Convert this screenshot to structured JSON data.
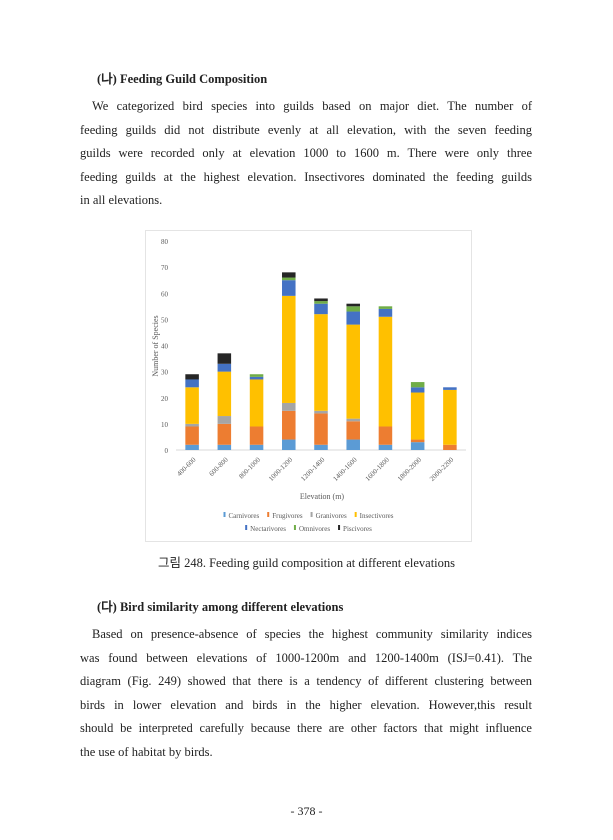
{
  "section1": {
    "heading": "(나) Feeding Guild Composition",
    "lines": [
      "We categorized bird species into guilds based on major diet.  The number of",
      "feeding guilds did not distribute evenly at all elevation, with the seven feeding",
      "guilds were recorded only at elevation 1000 to 1600 m. There were only three",
      "feeding guilds at the highest elevation. Insectivores dominated the feeding guilds",
      "in all elevations."
    ]
  },
  "caption": "그림 248. Feeding guild composition at different elevations",
  "section2": {
    "heading": "(다) Bird similarity among different elevations",
    "lines": [
      "Based on presence-absence of species the highest community similarity indices",
      "was found between elevations of 1000-1200m and 1200-1400m (ISJ=0.41). The",
      "diagram (Fig. 249) showed that there is a tendency of different clustering between",
      "birds in lower elevation and birds in the higher elevation. However,this result",
      "should be interpreted carefully because there are other factors that might influence",
      "the use of habitat by birds."
    ]
  },
  "page_number": "- 378 -",
  "chart_data": {
    "type": "bar",
    "stacked": true,
    "xlabel": "Elevation (m)",
    "ylabel": "Number of Species",
    "ylim": [
      0,
      80
    ],
    "yticks": [
      0,
      10,
      20,
      30,
      40,
      50,
      60,
      70,
      80
    ],
    "grid": false,
    "legend": "bottom",
    "categories": [
      "400-600",
      "600-800",
      "800-1000",
      "1000-1200",
      "1200-1400",
      "1400-1600",
      "1600-1800",
      "1800-2000",
      "2000-2200"
    ],
    "series": [
      {
        "name": "Carnivores",
        "color": "#5b9bd5",
        "values": [
          2,
          2,
          2,
          4,
          2,
          4,
          2,
          3,
          0
        ]
      },
      {
        "name": "Frugivores",
        "color": "#ed7d31",
        "values": [
          7,
          8,
          7,
          11,
          12,
          7,
          7,
          1,
          2
        ]
      },
      {
        "name": "Granivores",
        "color": "#a5a5a5",
        "values": [
          1,
          3,
          0,
          3,
          1,
          1,
          0,
          0,
          0
        ]
      },
      {
        "name": "Insectivores",
        "color": "#ffc000",
        "values": [
          14,
          17,
          18,
          41,
          37,
          36,
          42,
          18,
          21
        ]
      },
      {
        "name": "Nectarivores",
        "color": "#4472c4",
        "values": [
          3,
          3,
          1,
          6,
          4,
          5,
          3,
          2,
          1
        ]
      },
      {
        "name": "Omnivores",
        "color": "#70ad47",
        "values": [
          0,
          0,
          1,
          1,
          1,
          2,
          1,
          2,
          0
        ]
      },
      {
        "name": "Piscivores",
        "color": "#262626",
        "values": [
          2,
          4,
          0,
          2,
          1,
          1,
          0,
          0,
          0
        ]
      }
    ]
  }
}
